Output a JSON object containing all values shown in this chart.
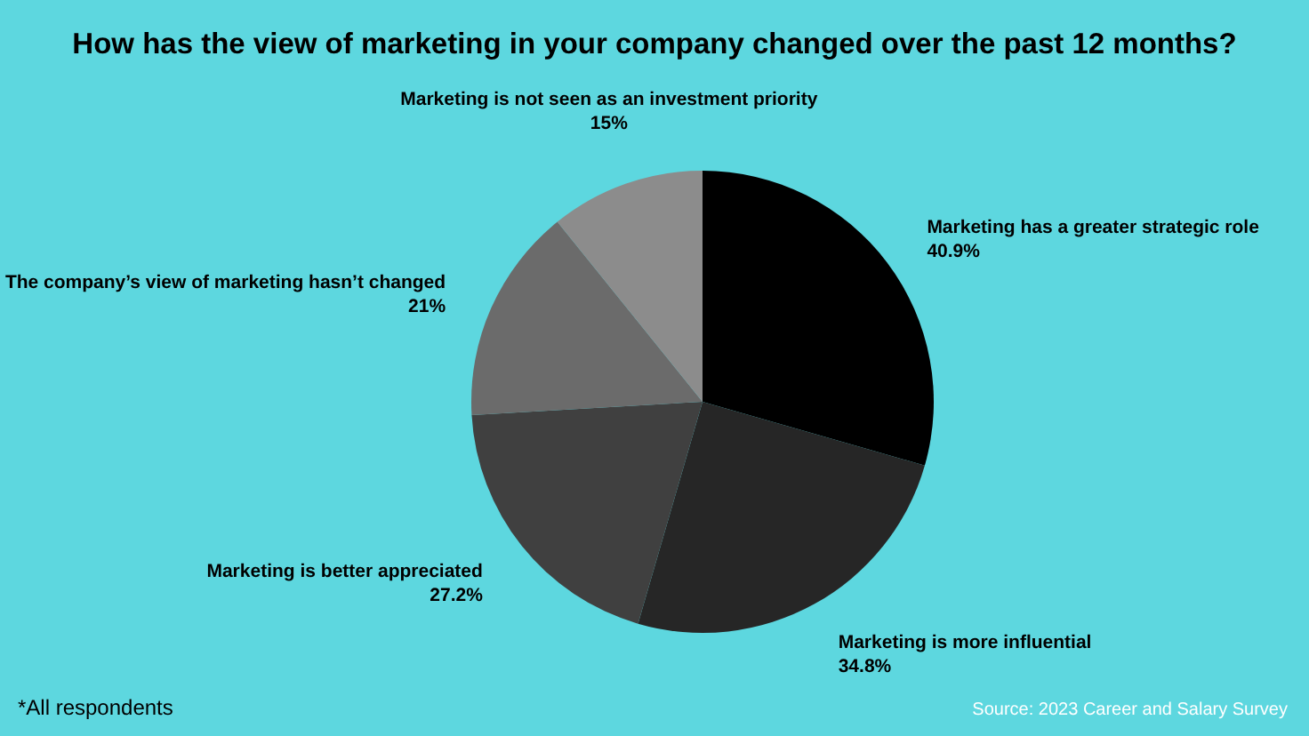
{
  "chart_data": {
    "type": "pie",
    "title": "How has the view of marketing in your company changed over the past 12 months?",
    "categories": [
      "Marketing has a greater strategic role",
      "Marketing is more influential",
      "Marketing is better appreciated",
      "The company’s view of marketing hasn’t changed",
      "Marketing is not seen as an investment priority"
    ],
    "values": [
      40.9,
      34.8,
      27.2,
      21,
      15
    ],
    "value_labels": [
      "40.9%",
      "34.8%",
      "27.2%",
      "21%",
      "15%"
    ],
    "colors": [
      "#000000",
      "#262626",
      "#404040",
      "#6b6b6b",
      "#8c8c8c"
    ],
    "annotations": [
      "*All respondents",
      "Source: 2023 Career and Salary Survey"
    ]
  }
}
